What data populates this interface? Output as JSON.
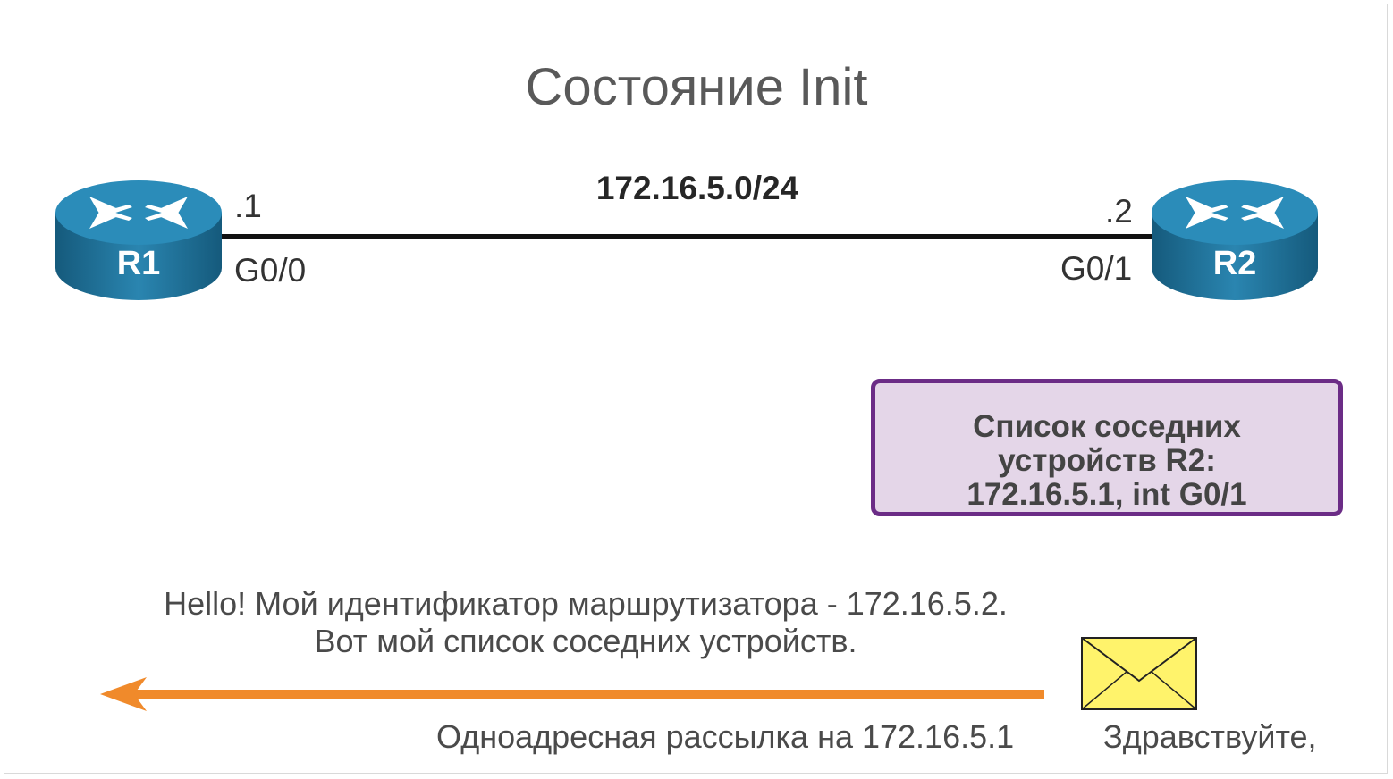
{
  "title": "Состояние Init",
  "network": "172.16.5.0/24",
  "r1": {
    "name": "R1",
    "ip_suffix": ".1",
    "interface": "G0/0"
  },
  "r2": {
    "name": "R2",
    "ip_suffix": ".2",
    "interface": "G0/1"
  },
  "neighbor_box": {
    "line1": "Список соседних",
    "line2": "устройств R2:",
    "line3": "172.16.5.1, int G0/1"
  },
  "hello_message": {
    "line1": "Hello! Мой идентификатор маршрутизатора - 172.16.5.2.",
    "line2": "Вот мой список соседних устройств."
  },
  "unicast_label": "Одноадресная рассылка на 172.16.5.1",
  "envelope_label": "Здравствуйте,",
  "colors": {
    "router": "#1f6f95",
    "neighbor_border": "#6b2c86",
    "neighbor_fill": "#e4d6e8",
    "arrow": "#f08a2b",
    "envelope": "#fff36b"
  }
}
